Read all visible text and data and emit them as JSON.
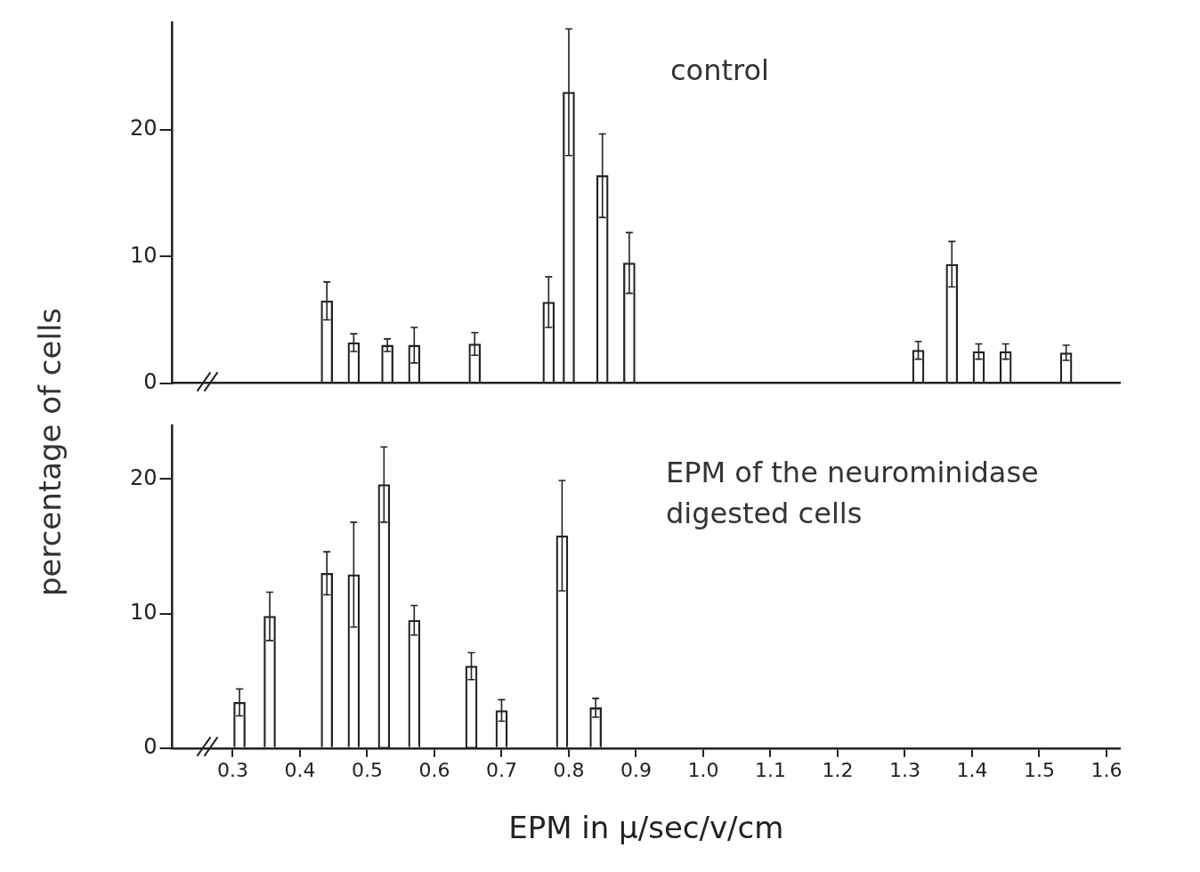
{
  "chart_data": [
    {
      "type": "bar",
      "x": [
        0.44,
        0.48,
        0.53,
        0.57,
        0.66,
        0.77,
        0.8,
        0.85,
        0.89,
        1.32,
        1.37,
        1.41,
        1.45,
        1.54
      ],
      "values": [
        6.5,
        3.2,
        3.0,
        3.0,
        3.1,
        6.4,
        23.0,
        16.4,
        9.5,
        2.6,
        9.4,
        2.5,
        2.5,
        2.4
      ],
      "errors": [
        1.5,
        0.7,
        0.5,
        1.4,
        0.9,
        2.0,
        5.0,
        3.3,
        2.4,
        0.7,
        1.8,
        0.6,
        0.6,
        0.6
      ],
      "color": "#222222",
      "xlim": [
        0.21,
        1.62
      ],
      "ylim": [
        0,
        28.5
      ],
      "yticks": [
        0,
        10,
        20
      ],
      "tick_labels": "y",
      "grid": false,
      "ylabel": "percentage of cells",
      "annotations": [
        "control"
      ]
    },
    {
      "type": "bar",
      "x": [
        0.31,
        0.355,
        0.44,
        0.48,
        0.525,
        0.57,
        0.655,
        0.7,
        0.79,
        0.84
      ],
      "values": [
        3.4,
        9.8,
        13.0,
        12.9,
        19.6,
        9.5,
        6.1,
        2.8,
        15.8,
        3.0
      ],
      "errors": [
        1.0,
        1.8,
        1.6,
        3.9,
        2.8,
        1.1,
        1.0,
        0.8,
        4.1,
        0.7
      ],
      "color": "#222222",
      "xlim": [
        0.21,
        1.62
      ],
      "ylim": [
        0,
        24
      ],
      "yticks": [
        0,
        10,
        20
      ],
      "grid": false,
      "xticks": [
        0.3,
        0.4,
        0.5,
        0.6,
        0.7,
        0.8,
        0.9,
        {
          "value": 1.0,
          "label": "1.0"
        },
        1.1,
        1.2,
        1.3,
        1.4,
        1.5,
        1.6
      ],
      "xlabel": "EPM in μ/sec/v/cm",
      "annotations": [
        "EPM of the neurominidase digested cells"
      ]
    }
  ]
}
